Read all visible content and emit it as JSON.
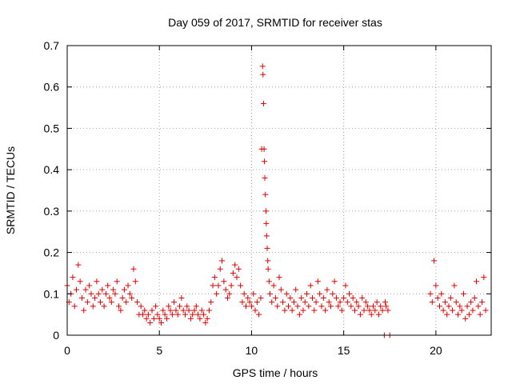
{
  "chart_data": {
    "type": "scatter",
    "title": "Day 059 of 2017, SRMTID for receiver stas",
    "xlabel": "GPS time / hours",
    "ylabel": "SRMTID / TECUs",
    "xlim": [
      0,
      23
    ],
    "ylim": [
      0,
      0.7
    ],
    "x_ticks": [
      0,
      5,
      10,
      15,
      20
    ],
    "x_tick_labels": [
      "0",
      "5",
      "10",
      "15",
      "20"
    ],
    "y_ticks": [
      0,
      0.1,
      0.2,
      0.3,
      0.4,
      0.5,
      0.6,
      0.7
    ],
    "y_tick_labels": [
      "0",
      "0.1",
      "0.2",
      "0.3",
      "0.4",
      "0.5",
      "0.6",
      "0.7"
    ],
    "grid": true,
    "marker": "+",
    "color": "#e00000",
    "series": [
      {
        "name": "SRMTID",
        "x": [
          0.0,
          0.1,
          0.2,
          0.3,
          0.4,
          0.5,
          0.6,
          0.7,
          0.8,
          0.9,
          1.0,
          1.1,
          1.2,
          1.3,
          1.4,
          1.5,
          1.6,
          1.7,
          1.8,
          1.9,
          2.0,
          2.1,
          2.2,
          2.3,
          2.4,
          2.5,
          2.6,
          2.7,
          2.8,
          2.9,
          3.0,
          3.1,
          3.2,
          3.3,
          3.4,
          3.5,
          3.6,
          3.7,
          3.8,
          3.9,
          4.0,
          4.1,
          4.2,
          4.3,
          4.4,
          4.5,
          4.6,
          4.7,
          4.8,
          4.9,
          5.0,
          5.1,
          5.2,
          5.3,
          5.4,
          5.5,
          5.6,
          5.7,
          5.8,
          5.9,
          6.0,
          6.1,
          6.2,
          6.3,
          6.4,
          6.5,
          6.6,
          6.7,
          6.8,
          6.9,
          7.0,
          7.1,
          7.2,
          7.3,
          7.4,
          7.5,
          7.6,
          7.7,
          7.8,
          7.9,
          8.0,
          8.1,
          8.2,
          8.3,
          8.4,
          8.5,
          8.6,
          8.7,
          8.8,
          8.9,
          9.0,
          9.1,
          9.2,
          9.3,
          9.4,
          9.5,
          9.6,
          9.7,
          9.8,
          9.9,
          10.0,
          10.1,
          10.2,
          10.3,
          10.4,
          10.5,
          10.55,
          10.6,
          10.62,
          10.65,
          10.68,
          10.7,
          10.72,
          10.75,
          10.78,
          10.8,
          10.82,
          10.85,
          10.88,
          10.9,
          10.95,
          11.0,
          11.1,
          11.2,
          11.3,
          11.4,
          11.5,
          11.6,
          11.7,
          11.8,
          11.9,
          12.0,
          12.1,
          12.2,
          12.3,
          12.4,
          12.5,
          12.6,
          12.7,
          12.8,
          12.9,
          13.0,
          13.1,
          13.2,
          13.3,
          13.4,
          13.5,
          13.6,
          13.7,
          13.8,
          13.9,
          14.0,
          14.1,
          14.2,
          14.3,
          14.4,
          14.5,
          14.6,
          14.7,
          14.8,
          14.9,
          15.0,
          15.1,
          15.2,
          15.3,
          15.4,
          15.5,
          15.6,
          15.7,
          15.8,
          15.9,
          16.0,
          16.1,
          16.2,
          16.3,
          16.4,
          16.5,
          16.6,
          16.7,
          16.8,
          16.9,
          17.0,
          17.1,
          17.2,
          17.25,
          17.3,
          17.4,
          17.5,
          19.7,
          19.8,
          19.9,
          20.0,
          20.1,
          20.2,
          20.3,
          20.4,
          20.5,
          20.6,
          20.7,
          20.8,
          20.9,
          21.0,
          21.1,
          21.2,
          21.3,
          21.4,
          21.5,
          21.6,
          21.7,
          21.8,
          21.9,
          22.0,
          22.1,
          22.2,
          22.3,
          22.4,
          22.5,
          22.6,
          22.7
        ],
        "y": [
          0.12,
          0.08,
          0.1,
          0.14,
          0.07,
          0.11,
          0.17,
          0.13,
          0.09,
          0.06,
          0.11,
          0.08,
          0.12,
          0.1,
          0.07,
          0.09,
          0.13,
          0.1,
          0.08,
          0.11,
          0.07,
          0.1,
          0.12,
          0.09,
          0.08,
          0.11,
          0.1,
          0.13,
          0.07,
          0.06,
          0.09,
          0.11,
          0.08,
          0.12,
          0.1,
          0.09,
          0.16,
          0.13,
          0.08,
          0.05,
          0.07,
          0.05,
          0.06,
          0.04,
          0.05,
          0.03,
          0.06,
          0.04,
          0.07,
          0.05,
          0.04,
          0.03,
          0.06,
          0.05,
          0.04,
          0.07,
          0.06,
          0.05,
          0.08,
          0.06,
          0.05,
          0.07,
          0.09,
          0.06,
          0.05,
          0.07,
          0.06,
          0.04,
          0.05,
          0.06,
          0.07,
          0.05,
          0.04,
          0.06,
          0.05,
          0.03,
          0.04,
          0.06,
          0.08,
          0.12,
          0.14,
          0.1,
          0.12,
          0.16,
          0.18,
          0.13,
          0.11,
          0.09,
          0.1,
          0.12,
          0.15,
          0.17,
          0.14,
          0.16,
          0.12,
          0.08,
          0.1,
          0.07,
          0.09,
          0.08,
          0.07,
          0.1,
          0.06,
          0.08,
          0.05,
          0.09,
          0.45,
          0.65,
          0.63,
          0.56,
          0.45,
          0.42,
          0.38,
          0.34,
          0.3,
          0.27,
          0.24,
          0.21,
          0.18,
          0.16,
          0.13,
          0.1,
          0.08,
          0.12,
          0.09,
          0.07,
          0.14,
          0.11,
          0.08,
          0.06,
          0.1,
          0.07,
          0.09,
          0.06,
          0.08,
          0.11,
          0.07,
          0.05,
          0.09,
          0.06,
          0.08,
          0.1,
          0.07,
          0.12,
          0.09,
          0.06,
          0.08,
          0.13,
          0.1,
          0.07,
          0.09,
          0.06,
          0.11,
          0.08,
          0.07,
          0.1,
          0.13,
          0.09,
          0.07,
          0.08,
          0.06,
          0.09,
          0.12,
          0.08,
          0.1,
          0.07,
          0.09,
          0.06,
          0.08,
          0.07,
          0.05,
          0.09,
          0.06,
          0.08,
          0.07,
          0.06,
          0.05,
          0.07,
          0.06,
          0.08,
          0.05,
          0.07,
          0.06,
          0.0,
          0.08,
          0.07,
          0.06,
          0.0,
          0.1,
          0.08,
          0.18,
          0.12,
          0.09,
          0.07,
          0.1,
          0.06,
          0.08,
          0.05,
          0.07,
          0.09,
          0.06,
          0.12,
          0.08,
          0.05,
          0.07,
          0.06,
          0.1,
          0.04,
          0.07,
          0.05,
          0.08,
          0.06,
          0.09,
          0.13,
          0.07,
          0.05,
          0.08,
          0.14,
          0.06
        ]
      }
    ]
  }
}
